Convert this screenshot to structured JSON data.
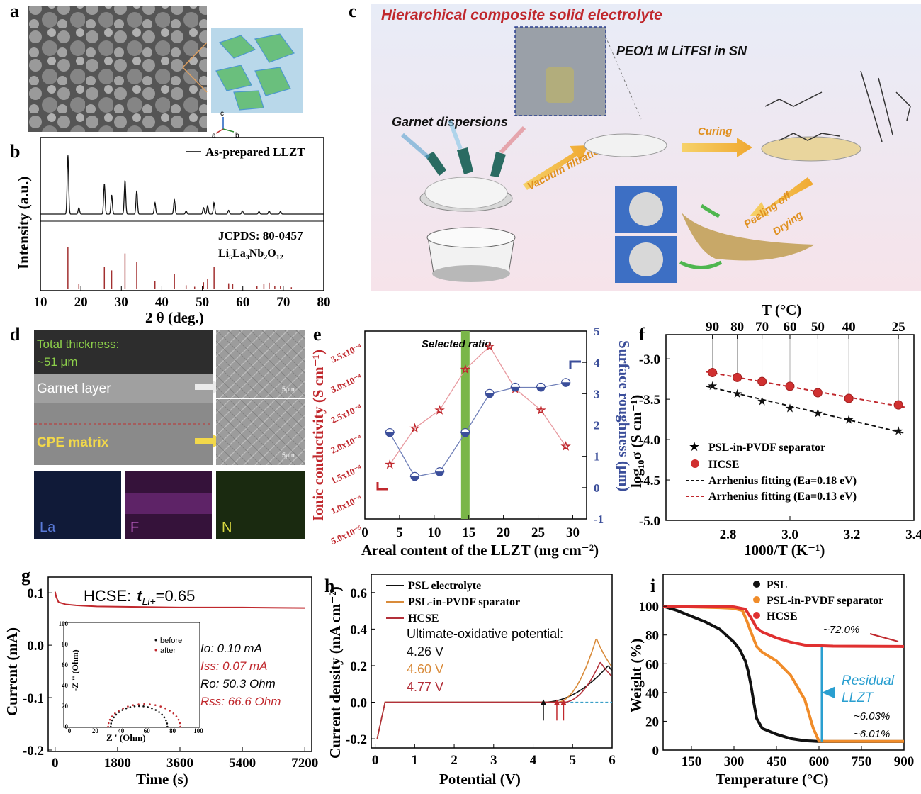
{
  "panel_labels": [
    "a",
    "b",
    "c",
    "d",
    "e",
    "f",
    "g",
    "h",
    "i"
  ],
  "panel_a": {
    "crystal_axes": [
      "c",
      "a",
      "b"
    ]
  },
  "panel_c": {
    "title": "Hierarchical composite solid electrolyte",
    "solution_label": "PEO/1 M LiTFSI in SN",
    "dispersion_label": "Garnet dispersions",
    "step_vacuum": "Vacuum filtration",
    "step_curing": "Curing",
    "step_peeling": "Peeling off",
    "step_drying": "Drying"
  },
  "panel_d": {
    "thickness_label": "Total thickness:",
    "thickness_value": "~51 μm",
    "garnet_label": "Garnet layer",
    "cpe_label": "CPE matrix",
    "scale1": "5μm",
    "scale2": "5μm",
    "eds_la": "La",
    "eds_f": "F",
    "eds_n": "N"
  },
  "chart_data": [
    {
      "id": "b",
      "type": "line",
      "xlabel": "2 θ (deg.)",
      "ylabel": "Intensity (a.u.)",
      "xlim": [
        10,
        80
      ],
      "xticks": [
        "10",
        "20",
        "30",
        "40",
        "50",
        "60",
        "70",
        "80"
      ],
      "legend": "As-prepared LLZT",
      "reference_label": "JCPDS: 80-0457",
      "reference_formula": "Li5La3Nb2O12",
      "peaks": [
        {
          "x": 16.8,
          "h": 0.92
        },
        {
          "x": 19.5,
          "h": 0.1
        },
        {
          "x": 25.8,
          "h": 0.47
        },
        {
          "x": 27.6,
          "h": 0.3
        },
        {
          "x": 30.9,
          "h": 0.53
        },
        {
          "x": 33.8,
          "h": 0.37
        },
        {
          "x": 38.3,
          "h": 0.18
        },
        {
          "x": 43.1,
          "h": 0.22
        },
        {
          "x": 46.0,
          "h": 0.05
        },
        {
          "x": 50.3,
          "h": 0.1
        },
        {
          "x": 51.3,
          "h": 0.13
        },
        {
          "x": 52.9,
          "h": 0.18
        },
        {
          "x": 56.5,
          "h": 0.06
        },
        {
          "x": 59.9,
          "h": 0.05
        },
        {
          "x": 64.0,
          "h": 0.04
        },
        {
          "x": 66.5,
          "h": 0.05
        },
        {
          "x": 69.3,
          "h": 0.04
        }
      ],
      "ref_sticks": [
        {
          "x": 16.8,
          "h": 0.85
        },
        {
          "x": 19.5,
          "h": 0.1
        },
        {
          "x": 25.8,
          "h": 0.45
        },
        {
          "x": 27.6,
          "h": 0.38
        },
        {
          "x": 30.9,
          "h": 0.72
        },
        {
          "x": 33.8,
          "h": 0.55
        },
        {
          "x": 38.3,
          "h": 0.17
        },
        {
          "x": 43.1,
          "h": 0.3
        },
        {
          "x": 46.0,
          "h": 0.08
        },
        {
          "x": 48.1,
          "h": 0.05
        },
        {
          "x": 50.3,
          "h": 0.14
        },
        {
          "x": 51.3,
          "h": 0.2
        },
        {
          "x": 52.9,
          "h": 0.45
        },
        {
          "x": 56.5,
          "h": 0.12
        },
        {
          "x": 57.5,
          "h": 0.1
        },
        {
          "x": 63.5,
          "h": 0.06
        },
        {
          "x": 65.2,
          "h": 0.1
        },
        {
          "x": 66.5,
          "h": 0.13
        },
        {
          "x": 67.9,
          "h": 0.07
        },
        {
          "x": 69.3,
          "h": 0.06
        },
        {
          "x": 72.0,
          "h": 0.04
        }
      ]
    },
    {
      "id": "e",
      "type": "line",
      "xlabel": "Areal content of the LLZT (mg cm⁻²)",
      "ylabel_left": "Ionic conductivity (S cm⁻¹)",
      "ylabel_right": "Surface roughness (μm)",
      "xlim": [
        0,
        32
      ],
      "xticks": [
        "0",
        "5",
        "10",
        "15",
        "20",
        "25",
        "30"
      ],
      "yticks_left": [
        "5.0x10⁻⁵",
        "1.0x10⁻⁴",
        "1.5x10⁻⁴",
        "2.0x10⁻⁴",
        "2.5x10⁻⁴",
        "3.0x10⁻⁴",
        "3.5x10⁻⁴"
      ],
      "yticks_right": [
        "-1",
        "0",
        "1",
        "2",
        "3",
        "4",
        "5"
      ],
      "annotation": "Selected ratio",
      "selected_x": 14.5,
      "series": [
        {
          "name": "Ionic conductivity",
          "axis": "left",
          "color": "#c0282d",
          "x": [
            3.6,
            7.2,
            10.8,
            14.5,
            18.0,
            21.7,
            25.4,
            29.0
          ],
          "y": [
            0.000155,
            0.000215,
            0.000245,
            0.000312,
            0.00035,
            0.00028,
            0.000245,
            0.000185
          ]
        },
        {
          "name": "Surface roughness",
          "axis": "right",
          "color": "#3b4e9a",
          "x": [
            3.6,
            7.2,
            10.8,
            14.5,
            18.0,
            21.7,
            25.4,
            29.0
          ],
          "y": [
            1.75,
            0.35,
            0.5,
            1.75,
            3.0,
            3.2,
            3.2,
            3.35
          ]
        }
      ]
    },
    {
      "id": "f",
      "type": "scatter",
      "xlabel": "1000/T (K⁻¹)",
      "ylabel": "log₁₀σ (S cm⁻¹)",
      "top_axis_label": "T (°C)",
      "top_ticks": [
        "90",
        "80",
        "70",
        "60",
        "50",
        "40",
        "25"
      ],
      "xlim": [
        2.6,
        3.4
      ],
      "ylim": [
        -5.0,
        -2.7
      ],
      "xticks": [
        "2.8",
        "3.0",
        "3.2",
        "3.4"
      ],
      "yticks": [
        "-5.0",
        "-4.5",
        "-4.0",
        "-3.5",
        "-3.0"
      ],
      "series": [
        {
          "name": "PSL-in-PVDF separator",
          "marker": "star",
          "color": "#111111",
          "x": [
            2.75,
            2.83,
            2.91,
            3.0,
            3.09,
            3.19,
            3.35
          ],
          "y": [
            -3.33,
            -3.43,
            -3.52,
            -3.61,
            -3.67,
            -3.75,
            -3.89
          ]
        },
        {
          "name": "HCSE",
          "marker": "circle",
          "color": "#d03030",
          "x": [
            2.75,
            2.83,
            2.91,
            3.0,
            3.09,
            3.19,
            3.35
          ],
          "y": [
            -3.17,
            -3.23,
            -3.28,
            -3.34,
            -3.42,
            -3.49,
            -3.57
          ]
        }
      ],
      "fits": [
        "Arrhenius fitting (Ea=0.18 eV)",
        "Arrhenius fitting (Ea=0.13 eV)"
      ]
    },
    {
      "id": "g",
      "type": "line",
      "xlabel": "Time (s)",
      "ylabel": "Current (mA)",
      "xlim": [
        -200,
        7400
      ],
      "ylim": [
        -0.2,
        0.13
      ],
      "xticks": [
        "0",
        "1800",
        "3600",
        "5400",
        "7200"
      ],
      "yticks": [
        "-0.2",
        "-0.1",
        "0.0",
        "0.1"
      ],
      "title_prefix": "HCSE:",
      "title_value": "=0.65",
      "series": [
        {
          "name": "HCSE",
          "color": "#c0282d",
          "x": [
            0,
            30,
            100,
            300,
            600,
            1200,
            2400,
            3600,
            5400,
            7200
          ],
          "y": [
            0.102,
            0.092,
            0.082,
            0.078,
            0.076,
            0.074,
            0.073,
            0.072,
            0.072,
            0.071
          ]
        }
      ],
      "params": [
        "Io: 0.10 mA",
        "Iss: 0.07 mA",
        "Ro: 50.3 Ohm",
        "Rss: 66.6 Ohm"
      ],
      "inset": {
        "xlabel": "Z ' (Ohm)",
        "ylabel": "-Z '' (Ohm)",
        "xticks": [
          "0",
          "20",
          "40",
          "60",
          "80",
          "100"
        ],
        "yticks": [
          "0",
          "20",
          "40",
          "60",
          "80",
          "100"
        ],
        "legend": [
          "before",
          "after"
        ]
      }
    },
    {
      "id": "h",
      "type": "line",
      "xlabel": "Potential (V)",
      "ylabel": "Current density (mA cm⁻²)",
      "xlim": [
        -0.1,
        6.0
      ],
      "ylim": [
        -0.25,
        0.7
      ],
      "xticks": [
        "0",
        "1",
        "2",
        "3",
        "4",
        "5",
        "6"
      ],
      "yticks": [
        "-0.2",
        "0.0",
        "0.2",
        "0.4",
        "0.6"
      ],
      "series": [
        {
          "name": "PSL electrolyte",
          "color": "#111111"
        },
        {
          "name": "PSL-in-PVDF sparator",
          "color": "#d98b3a"
        },
        {
          "name": "HCSE",
          "color": "#b3303a"
        }
      ],
      "annotation_title": "Ultimate-oxidative potential:",
      "potentials": [
        "4.26 V",
        "4.60 V",
        "4.77 V"
      ]
    },
    {
      "id": "i",
      "type": "line",
      "xlabel": "Temperature (°C)",
      "ylabel": "Weight (%)",
      "xlim": [
        50,
        900
      ],
      "ylim": [
        0,
        105
      ],
      "xticks": [
        "150",
        "300",
        "450",
        "600",
        "750",
        "900"
      ],
      "yticks": [
        "0",
        "20",
        "40",
        "60",
        "80",
        "100"
      ],
      "series": [
        {
          "name": "PSL",
          "color": "#111111",
          "x": [
            50,
            100,
            150,
            200,
            250,
            300,
            320,
            340,
            350,
            360,
            370,
            380,
            400,
            450,
            500,
            550,
            600,
            900
          ],
          "y": [
            100,
            97,
            93,
            89,
            84,
            75,
            70,
            62,
            55,
            45,
            33,
            22,
            15,
            11,
            8,
            6.5,
            6.0,
            6.0
          ]
        },
        {
          "name": "PSL-in-PVDF separator",
          "color": "#f08c2a",
          "x": [
            50,
            150,
            250,
            300,
            330,
            345,
            360,
            380,
            400,
            450,
            500,
            550,
            580,
            600,
            620,
            900
          ],
          "y": [
            100,
            99.5,
            99,
            98.5,
            97,
            90,
            82,
            72,
            68,
            62,
            52,
            35,
            15,
            6.2,
            6.1,
            6.03
          ]
        },
        {
          "name": "HCSE",
          "color": "#e03030",
          "x": [
            50,
            150,
            250,
            300,
            340,
            360,
            380,
            400,
            450,
            500,
            550,
            600,
            650,
            900
          ],
          "y": [
            100,
            100,
            100,
            99.5,
            98,
            92,
            85,
            82,
            78,
            75,
            73,
            72.5,
            72.2,
            72.0
          ]
        }
      ],
      "annotations": [
        "~72.0%",
        "~6.03%",
        "~6.01%"
      ],
      "residual_label": "Residual LLZT"
    }
  ]
}
